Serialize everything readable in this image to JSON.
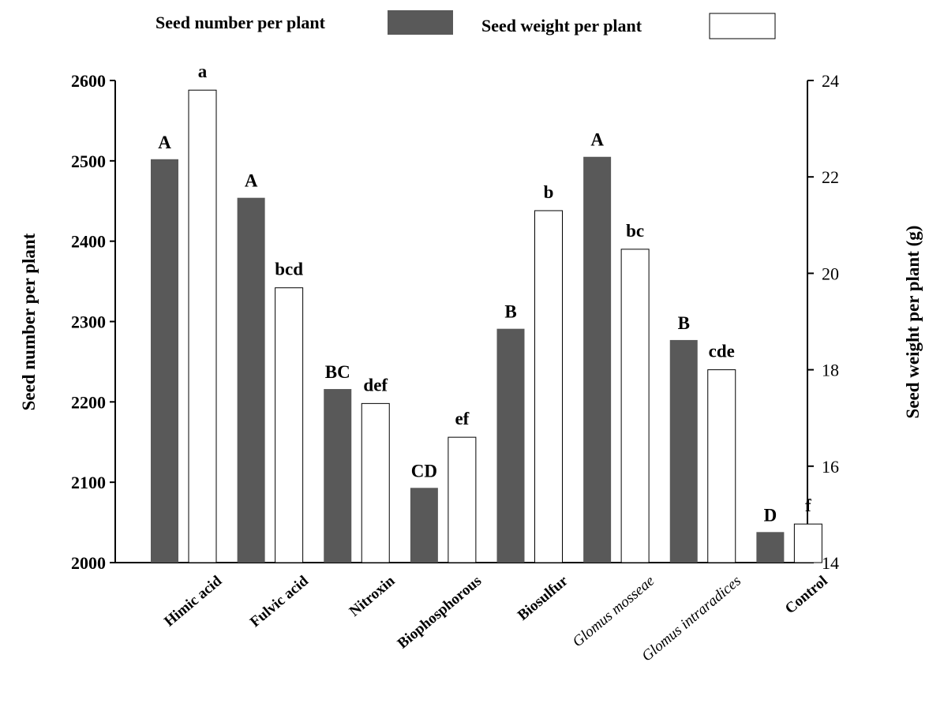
{
  "chart_data": {
    "type": "bar",
    "categories": [
      "Himic acid",
      "Fulvic acid",
      "Nitroxin",
      "Biophosphorous",
      "Biosulfur",
      "Glomus mosseae",
      "Glomus intraradices",
      "Control"
    ],
    "italic_categories": [
      "Glomus mosseae",
      "Glomus intraradices"
    ],
    "series": [
      {
        "name": "Seed number per plant",
        "axis": "left",
        "color": "#595959",
        "values": [
          2502,
          2454,
          2216,
          2093,
          2291,
          2505,
          2277,
          2038
        ],
        "letters": [
          "A",
          "A",
          "BC",
          "CD",
          "B",
          "A",
          "B",
          "D"
        ]
      },
      {
        "name": "Seed weight per plant",
        "axis": "right",
        "color": "#ffffff",
        "values": [
          23.8,
          19.7,
          17.3,
          16.6,
          21.3,
          20.5,
          18.0,
          14.8
        ],
        "letters": [
          "a",
          "bcd",
          "def",
          "ef",
          "b",
          "bc",
          "cde",
          "f"
        ]
      }
    ],
    "left_axis": {
      "label": "Seed number per plant",
      "ylim": [
        2000,
        2600
      ],
      "ticks": [
        "2000",
        "2100",
        "2200",
        "2300",
        "2400",
        "2500",
        "2600"
      ]
    },
    "right_axis": {
      "label": "Seed weight per plant (g)",
      "ylim": [
        14,
        24
      ],
      "ticks": [
        "14",
        "16",
        "18",
        "20",
        "22",
        "24"
      ]
    },
    "legend_position": "top-center",
    "grid": false
  }
}
